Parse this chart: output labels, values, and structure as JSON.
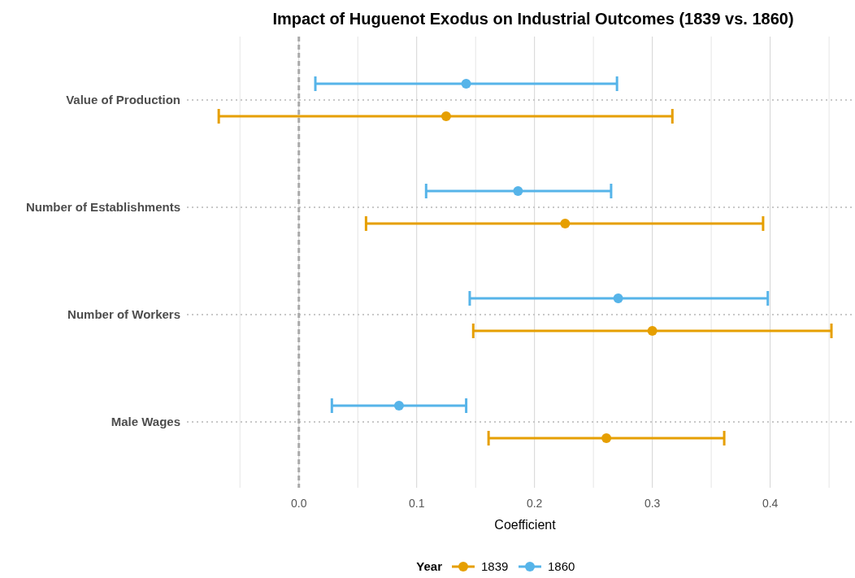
{
  "chart_data": {
    "type": "scatter",
    "orientation": "horizontal",
    "title": "Impact of Huguenot Exodus on Industrial Outcomes (1839 vs. 1860)",
    "xlabel": "Coefficient",
    "legend_title": "Year",
    "categories": [
      "Value of Production",
      "Number of Establishments",
      "Number of Workers",
      "Male Wages"
    ],
    "series": [
      {
        "name": "1839",
        "color": "#e69f00",
        "values": [
          0.125,
          0.226,
          0.3,
          0.261
        ],
        "errors": [
          [
            -0.068,
            0.317
          ],
          [
            0.057,
            0.394
          ],
          [
            0.148,
            0.452
          ],
          [
            0.161,
            0.361
          ]
        ]
      },
      {
        "name": "1860",
        "color": "#56b4e9",
        "values": [
          0.142,
          0.186,
          0.271,
          0.085
        ],
        "errors": [
          [
            0.014,
            0.27
          ],
          [
            0.108,
            0.265
          ],
          [
            0.145,
            0.398
          ],
          [
            0.028,
            0.142
          ]
        ]
      }
    ],
    "xlim": [
      -0.095,
      0.472
    ],
    "xticks": [
      {
        "value": -0.05,
        "label": null
      },
      {
        "value": 0,
        "label": "0.0"
      },
      {
        "value": 0.05,
        "label": null
      },
      0.1,
      {
        "value": 0.15,
        "label": null
      },
      0.2,
      {
        "value": 0.25,
        "label": null
      },
      0.3,
      {
        "value": 0.35,
        "label": null
      },
      0.4,
      {
        "value": 0.45,
        "label": null
      }
    ],
    "ref_lines": [
      {
        "axis": "x",
        "value": 0,
        "color": "#aaaaaa",
        "line_style": "dashed"
      }
    ],
    "grid": true,
    "legend": "bottom",
    "marker": "circle"
  }
}
